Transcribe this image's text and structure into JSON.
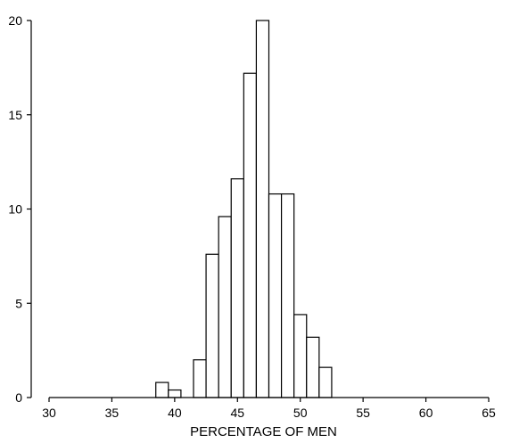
{
  "chart_data": {
    "type": "bar",
    "xlabel": "PERCENTAGE OF MEN",
    "ylabel": "",
    "xlim": [
      30,
      65
    ],
    "ylim": [
      0,
      20
    ],
    "x_ticks": [
      30,
      35,
      40,
      45,
      50,
      55,
      60,
      65
    ],
    "y_ticks": [
      0,
      5,
      10,
      15,
      20
    ],
    "bin_width": 1,
    "bins": [
      {
        "x0": 38.5,
        "x1": 39.5,
        "value": 0.8
      },
      {
        "x0": 39.5,
        "x1": 40.5,
        "value": 0.4
      },
      {
        "x0": 41.5,
        "x1": 42.5,
        "value": 2.0
      },
      {
        "x0": 42.5,
        "x1": 43.5,
        "value": 7.6
      },
      {
        "x0": 43.5,
        "x1": 44.5,
        "value": 9.6
      },
      {
        "x0": 44.5,
        "x1": 45.5,
        "value": 11.6
      },
      {
        "x0": 45.5,
        "x1": 46.5,
        "value": 17.2
      },
      {
        "x0": 46.5,
        "x1": 47.5,
        "value": 20.0
      },
      {
        "x0": 47.5,
        "x1": 48.5,
        "value": 10.8
      },
      {
        "x0": 48.5,
        "x1": 49.5,
        "value": 10.8
      },
      {
        "x0": 49.5,
        "x1": 50.5,
        "value": 4.4
      },
      {
        "x0": 50.5,
        "x1": 51.5,
        "value": 3.2
      },
      {
        "x0": 51.5,
        "x1": 52.5,
        "value": 1.6
      }
    ],
    "grid": false,
    "legend": "none",
    "colors": {
      "bar_fill": "#ffffff",
      "bar_stroke": "#000000",
      "axis": "#000000"
    }
  }
}
